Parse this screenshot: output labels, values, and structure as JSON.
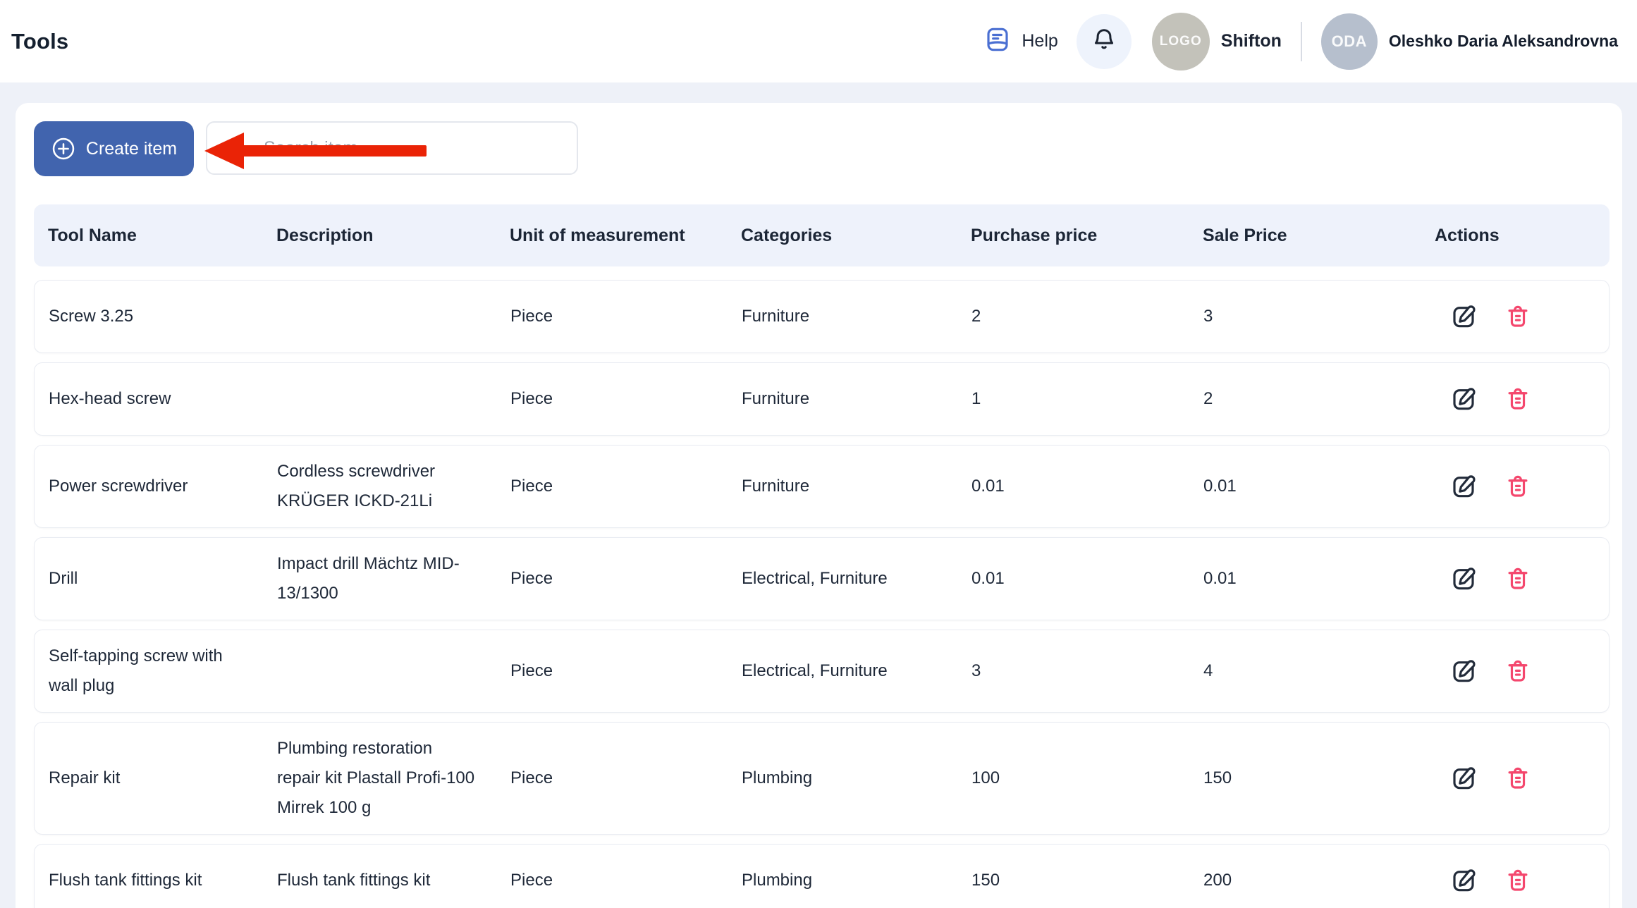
{
  "header": {
    "title": "Tools",
    "help_label": "Help",
    "workspace": {
      "avatar_text": "LOGO",
      "name": "Shifton"
    },
    "user": {
      "initials": "ODA",
      "name": "Oleshko Daria Aleksandrovna"
    }
  },
  "toolbar": {
    "create_button_label": "Create item",
    "search_placeholder": "Search item"
  },
  "annotation": {
    "shape": "red-arrow-pointing-left-at-create-item-button"
  },
  "table": {
    "columns": [
      "Tool Name",
      "Description",
      "Unit of measurement",
      "Categories",
      "Purchase price",
      "Sale Price",
      "Actions"
    ],
    "rows": [
      {
        "name": "Screw 3.25",
        "description": "",
        "unit": "Piece",
        "categories": "Furniture",
        "purchase_price": "2",
        "sale_price": "3"
      },
      {
        "name": "Hex-head screw",
        "description": "",
        "unit": "Piece",
        "categories": "Furniture",
        "purchase_price": "1",
        "sale_price": "2"
      },
      {
        "name": "Power screwdriver",
        "description": "Cordless screwdriver KRÜGER ICKD-21Li",
        "unit": "Piece",
        "categories": "Furniture",
        "purchase_price": "0.01",
        "sale_price": "0.01"
      },
      {
        "name": "Drill",
        "description": "Impact drill Mächtz MID-13/1300",
        "unit": "Piece",
        "categories": "Electrical, Furniture",
        "purchase_price": "0.01",
        "sale_price": "0.01"
      },
      {
        "name": "Self-tapping screw with wall plug",
        "description": "",
        "unit": "Piece",
        "categories": "Electrical, Furniture",
        "purchase_price": "3",
        "sale_price": "4"
      },
      {
        "name": "Repair kit",
        "description": "Plumbing restoration repair kit Plastall Profi-100 Mirrek 100 g",
        "unit": "Piece",
        "categories": "Plumbing",
        "purchase_price": "100",
        "sale_price": "150"
      },
      {
        "name": "Flush tank fittings kit",
        "description": "Flush tank fittings kit",
        "unit": "Piece",
        "categories": "Plumbing",
        "purchase_price": "150",
        "sale_price": "200"
      }
    ],
    "row_actions": [
      "edit",
      "delete"
    ]
  },
  "colors": {
    "accent": "#4164ae",
    "arrow": "#ea2306",
    "delete_icon": "#f4476d",
    "edit_icon": "#222b3a",
    "header_row_bg": "#eef2fb",
    "page_bg": "#eef1f8",
    "help_icon": "#4a6fd2"
  }
}
